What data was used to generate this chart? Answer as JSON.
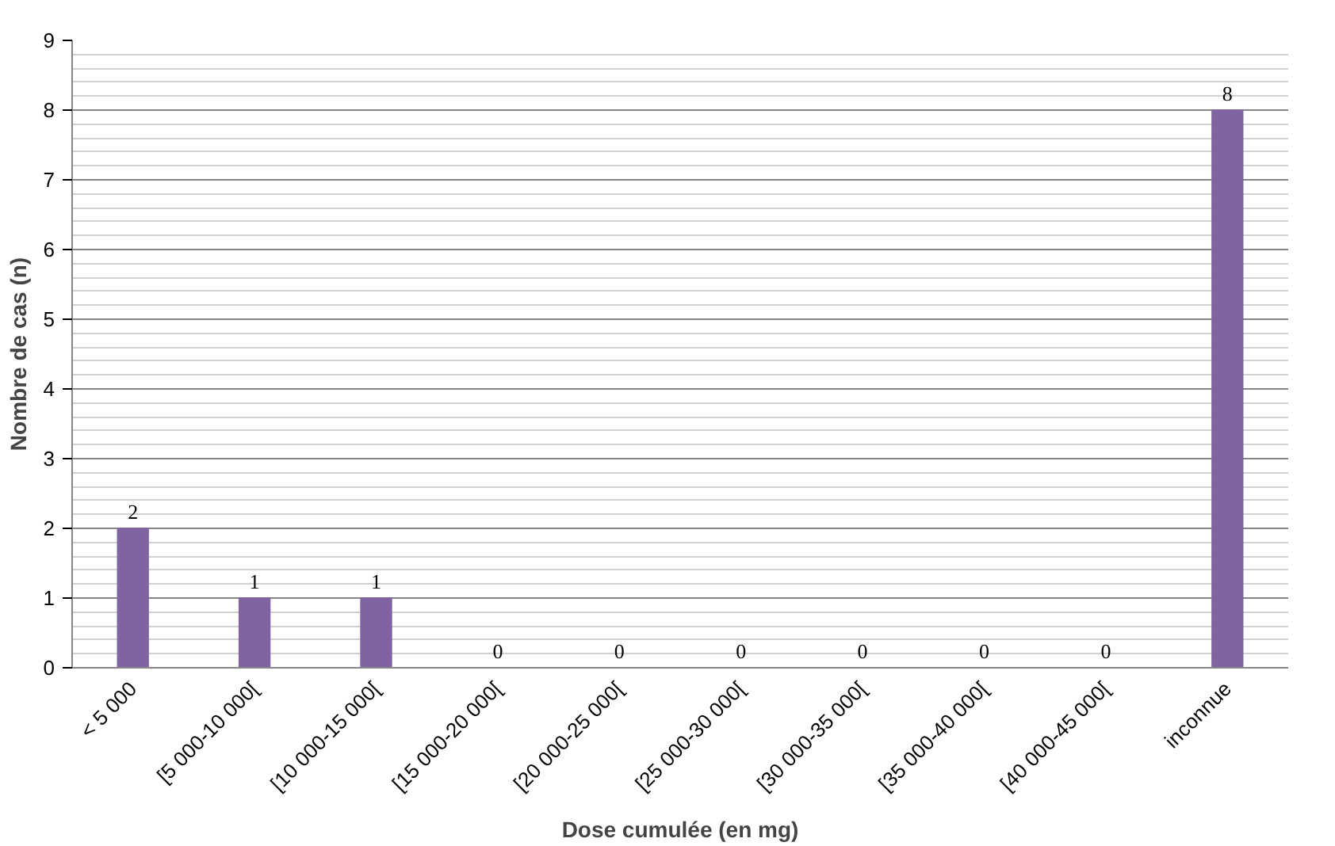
{
  "chart_data": {
    "type": "bar",
    "xlabel": "Dose cumulée (en mg)",
    "ylabel": "Nombre de cas (n)",
    "categories": [
      "< 5 000",
      "[5 000-10 000[",
      "[10 000-15 000[",
      "[15 000-20 000[",
      "[20 000-25 000[",
      "[25 000-30 000[",
      "[30 000-35 000[",
      "[35 000-40 000[",
      "[40 000-45 000[",
      "inconnue"
    ],
    "values": [
      2,
      1,
      1,
      0,
      0,
      0,
      0,
      0,
      0,
      8
    ],
    "color": "#8064a2",
    "ylim": [
      0,
      9
    ],
    "yticks": [
      0,
      1,
      2,
      3,
      4,
      5,
      6,
      7,
      8,
      9
    ],
    "grid": "y",
    "data_labels": true
  }
}
